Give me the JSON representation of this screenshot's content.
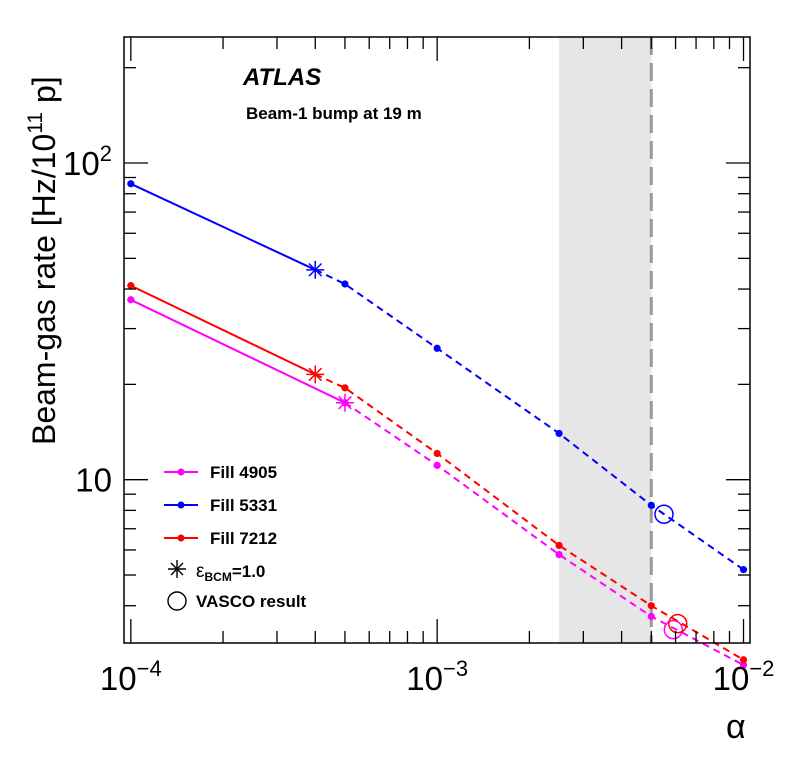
{
  "chart_data": {
    "type": "line",
    "title": "ATLAS",
    "subtitle": "Beam-1 bump at 19 m",
    "xlabel": "α",
    "ylabel": "Beam-gas rate [Hz/10",
    "ylabel_sup": "11",
    "ylabel_end": " p]",
    "x_scale": "log",
    "y_scale": "log",
    "xlim": [
      9.5e-05,
      0.0105
    ],
    "ylim": [
      3.05,
      250
    ],
    "x_ticks": [
      {
        "value": 0.0001,
        "base": "10",
        "exp": "−4"
      },
      {
        "value": 0.001,
        "base": "10",
        "exp": "−3"
      },
      {
        "value": 0.01,
        "base": "10",
        "exp": "−2"
      }
    ],
    "y_ticks": [
      {
        "value": 10,
        "base": "10",
        "exp": ""
      },
      {
        "value": 100,
        "base": "10",
        "exp": "2"
      }
    ],
    "shaded_band": {
      "x_from": 0.0025,
      "x_to": 0.005,
      "color": "#e6e6e6"
    },
    "vertical_line": {
      "x": 0.005,
      "color": "#999999",
      "style": "dashed"
    },
    "series": [
      {
        "name": "Fill 4905",
        "color": "#ff00ff",
        "solid": {
          "x": [
            0.0001,
            0.0005
          ],
          "y": [
            37,
            17.5
          ]
        },
        "dashed": {
          "x": [
            0.0005,
            0.001,
            0.0025,
            0.005,
            0.01
          ],
          "y": [
            17.5,
            11.1,
            5.8,
            3.7,
            2.6
          ]
        },
        "points": {
          "x": [
            0.0001,
            0.0005,
            0.001,
            0.0025,
            0.005,
            0.01
          ],
          "y": [
            37,
            17.5,
            11.1,
            5.8,
            3.7,
            2.6
          ]
        },
        "bcm_eps1": {
          "x": 0.0005,
          "y": 17.5
        },
        "vasco": {
          "x": 0.0059,
          "y": 3.36
        }
      },
      {
        "name": "Fill 5331",
        "color": "#0000ff",
        "solid": {
          "x": [
            0.0001,
            0.0004
          ],
          "y": [
            86,
            46
          ]
        },
        "dashed": {
          "x": [
            0.0004,
            0.0005,
            0.001,
            0.0025,
            0.005,
            0.01
          ],
          "y": [
            46,
            41.5,
            26,
            14,
            8.3,
            5.2
          ]
        },
        "points": {
          "x": [
            0.0001,
            0.0005,
            0.001,
            0.0025,
            0.005,
            0.01
          ],
          "y": [
            86,
            41.5,
            26,
            14,
            8.3,
            5.2
          ]
        },
        "bcm_eps1": {
          "x": 0.0004,
          "y": 46
        },
        "vasco": {
          "x": 0.0055,
          "y": 7.78
        }
      },
      {
        "name": "Fill 7212",
        "color": "#ff0000",
        "solid": {
          "x": [
            0.0001,
            0.0004
          ],
          "y": [
            41,
            21.5
          ]
        },
        "dashed": {
          "x": [
            0.0004,
            0.0005,
            0.001,
            0.0025,
            0.005,
            0.01
          ],
          "y": [
            21.5,
            19.5,
            12.1,
            6.2,
            4.0,
            2.7
          ]
        },
        "points": {
          "x": [
            0.0001,
            0.0005,
            0.001,
            0.0025,
            0.005,
            0.01
          ],
          "y": [
            41,
            19.5,
            12.1,
            6.2,
            4.0,
            2.7
          ]
        },
        "bcm_eps1": {
          "x": 0.0004,
          "y": 21.5
        },
        "vasco": {
          "x": 0.0061,
          "y": 3.51
        }
      }
    ],
    "legend": {
      "placement": "bottom-left",
      "entries": [
        {
          "label": "Fill 4905",
          "kind": "line-dot",
          "color": "#ff00ff"
        },
        {
          "label": "Fill 5331",
          "kind": "line-dot",
          "color": "#0000ff"
        },
        {
          "label": "Fill 7212",
          "kind": "line-dot",
          "color": "#ff0000"
        },
        {
          "label_main": "ε",
          "label_sub": "BCM",
          "label_end": "=1.0",
          "kind": "star",
          "color": "#000000"
        },
        {
          "label": "VASCO result",
          "kind": "circle",
          "color": "#000000"
        }
      ]
    }
  }
}
